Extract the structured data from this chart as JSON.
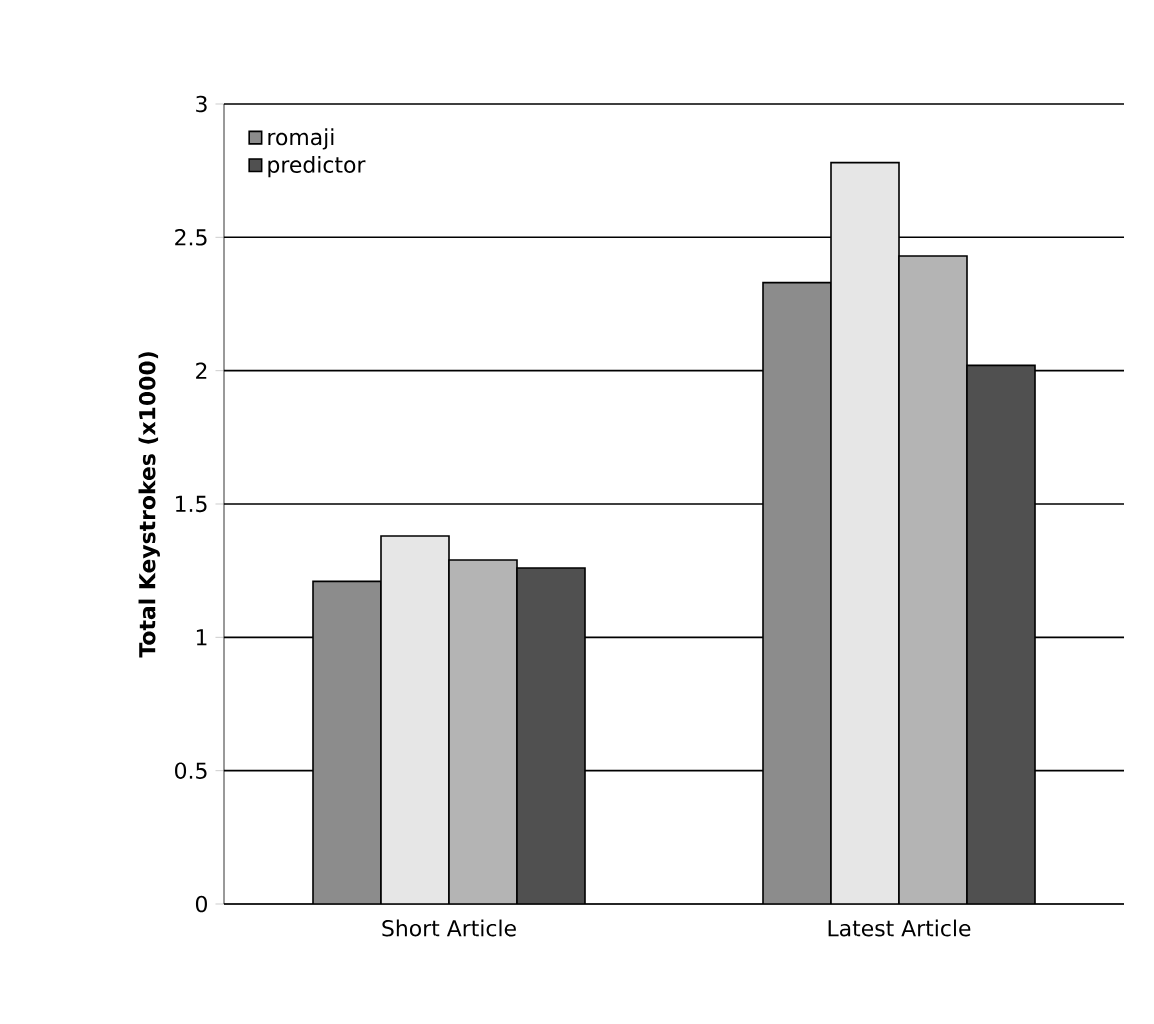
{
  "chart_data": {
    "type": "bar",
    "ylabel": "Total Keystrokes (x1000)",
    "categories": [
      "Short Article",
      "Latest Article"
    ],
    "series": [
      {
        "name": "romaji",
        "color": "#8c8c8c",
        "values": [
          1.21,
          2.33
        ]
      },
      {
        "color": "#e6e6e6",
        "values": [
          1.38,
          2.78
        ]
      },
      {
        "color": "#b4b4b4",
        "values": [
          1.29,
          2.43
        ]
      },
      {
        "name": "predictor",
        "color": "#505050",
        "values": [
          1.26,
          2.02
        ]
      }
    ],
    "ylim": [
      0,
      3
    ],
    "yticks": [
      0,
      0.5,
      1,
      1.5,
      2,
      2.5,
      3
    ],
    "grid": "y",
    "legend": "top left"
  }
}
